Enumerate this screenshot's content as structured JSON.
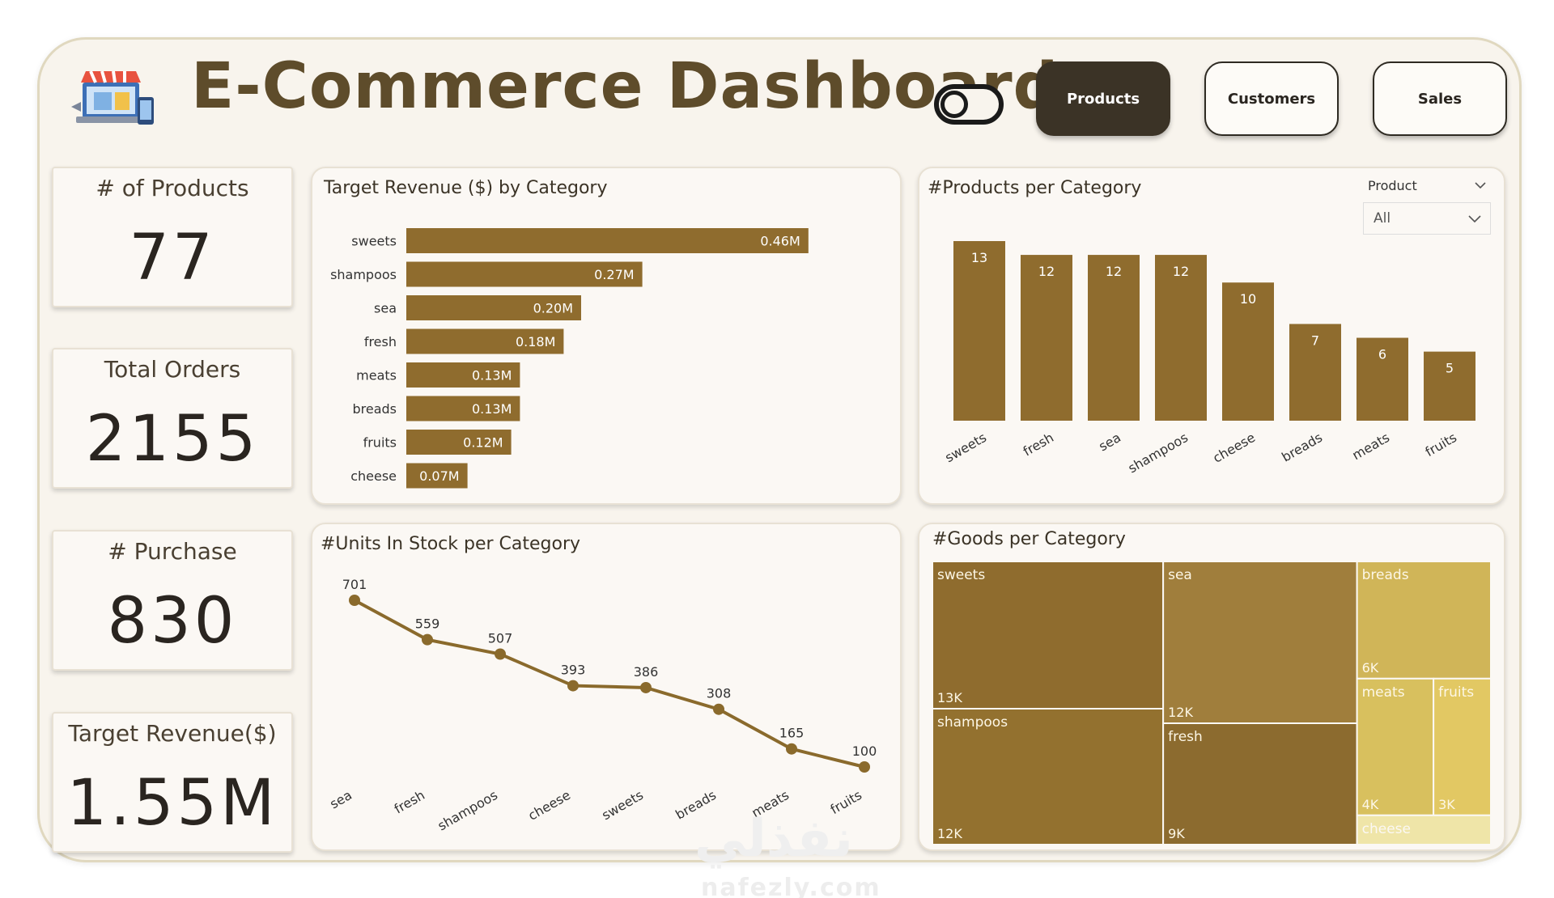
{
  "header": {
    "title": "E-Commerce Dashboard",
    "nav": [
      "Products",
      "Customers",
      "Sales"
    ],
    "active_nav": "Products",
    "logo_icon": "online-store-icon",
    "toggle_icon": "toggle-switch-icon"
  },
  "kpis": [
    {
      "label": "# of Products",
      "value": "77"
    },
    {
      "label": "Total Orders",
      "value": "2155"
    },
    {
      "label": "# Purchase",
      "value": "830"
    },
    {
      "label": "Target Revenue($)",
      "value": "1.55M"
    }
  ],
  "slicer": {
    "label": "Product",
    "value": "All"
  },
  "watermark": {
    "arabic": "نفذلي",
    "latin": "nafezly.com"
  },
  "colors": {
    "bar": "#8f6c2e",
    "line": "#8a6a2c",
    "treemap": [
      "#8f6c2e",
      "#93712f",
      "#a07e3c",
      "#8c6b2f",
      "#d0b558",
      "#d8c05e",
      "#e2c863",
      "#efe5a8"
    ]
  },
  "chart_data": [
    {
      "type": "bar",
      "orientation": "horizontal",
      "title": "Target Revenue ($) by Category",
      "categories": [
        "sweets",
        "shampoos",
        "sea",
        "fresh",
        "meats",
        "breads",
        "fruits",
        "cheese"
      ],
      "values": [
        0.46,
        0.27,
        0.2,
        0.18,
        0.13,
        0.13,
        0.12,
        0.07
      ],
      "labels": [
        "0.46M",
        "0.27M",
        "0.20M",
        "0.18M",
        "0.13M",
        "0.13M",
        "0.12M",
        "0.07M"
      ],
      "xlim": [
        0,
        0.5
      ],
      "grid": false
    },
    {
      "type": "bar",
      "orientation": "vertical",
      "title": "#Products per Category",
      "categories": [
        "sweets",
        "fresh",
        "sea",
        "shampoos",
        "cheese",
        "breads",
        "meats",
        "fruits"
      ],
      "values": [
        13,
        12,
        12,
        12,
        10,
        7,
        6,
        5
      ],
      "ylim": [
        0,
        13
      ],
      "grid": false
    },
    {
      "type": "line",
      "title": "#Units In Stock per Category",
      "categories": [
        "sea",
        "fresh",
        "shampoos",
        "cheese",
        "sweets",
        "breads",
        "meats",
        "fruits"
      ],
      "values": [
        701,
        559,
        507,
        393,
        386,
        308,
        165,
        100
      ],
      "ylim": [
        100,
        701
      ],
      "grid": false
    },
    {
      "type": "treemap",
      "title": "#Goods per Category",
      "items": [
        {
          "name": "sweets",
          "label": "13K",
          "value": 13
        },
        {
          "name": "shampoos",
          "label": "12K",
          "value": 12
        },
        {
          "name": "sea",
          "label": "12K",
          "value": 12
        },
        {
          "name": "fresh",
          "label": "9K",
          "value": 9
        },
        {
          "name": "breads",
          "label": "6K",
          "value": 6
        },
        {
          "name": "meats",
          "label": "4K",
          "value": 4
        },
        {
          "name": "fruits",
          "label": "3K",
          "value": 3
        },
        {
          "name": "cheese",
          "label": "",
          "value": 1.5
        }
      ]
    }
  ]
}
